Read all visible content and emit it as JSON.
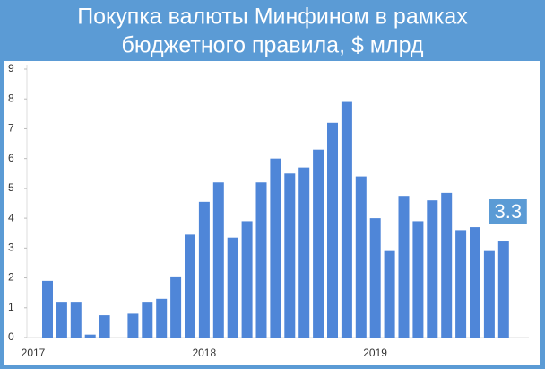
{
  "chart_data": {
    "type": "bar",
    "title": [
      "Покупка валюты Минфином в рамках",
      "бюджетного правила, $ млрд"
    ],
    "categories": [
      "2017",
      null,
      null,
      null,
      null,
      null,
      null,
      null,
      null,
      null,
      null,
      null,
      "2018",
      null,
      null,
      null,
      null,
      null,
      null,
      null,
      null,
      null,
      null,
      null,
      "2019",
      null,
      null,
      null,
      null,
      null,
      null,
      null,
      null
    ],
    "values": [
      1.9,
      1.2,
      1.2,
      0.1,
      0.75,
      null,
      0.8,
      1.2,
      1.3,
      2.05,
      3.45,
      4.55,
      5.2,
      3.35,
      3.9,
      5.2,
      6.0,
      5.5,
      5.7,
      6.3,
      7.2,
      7.9,
      5.4,
      4.0,
      2.9,
      4.75,
      3.9,
      4.6,
      4.85,
      3.6,
      3.7,
      2.9,
      3.25
    ],
    "color": "#4f86d8",
    "ylim": [
      0,
      9
    ],
    "yticks": [
      0,
      1,
      2,
      3,
      4,
      5,
      6,
      7,
      8,
      9
    ],
    "grid": false,
    "annotation": "3.3"
  }
}
